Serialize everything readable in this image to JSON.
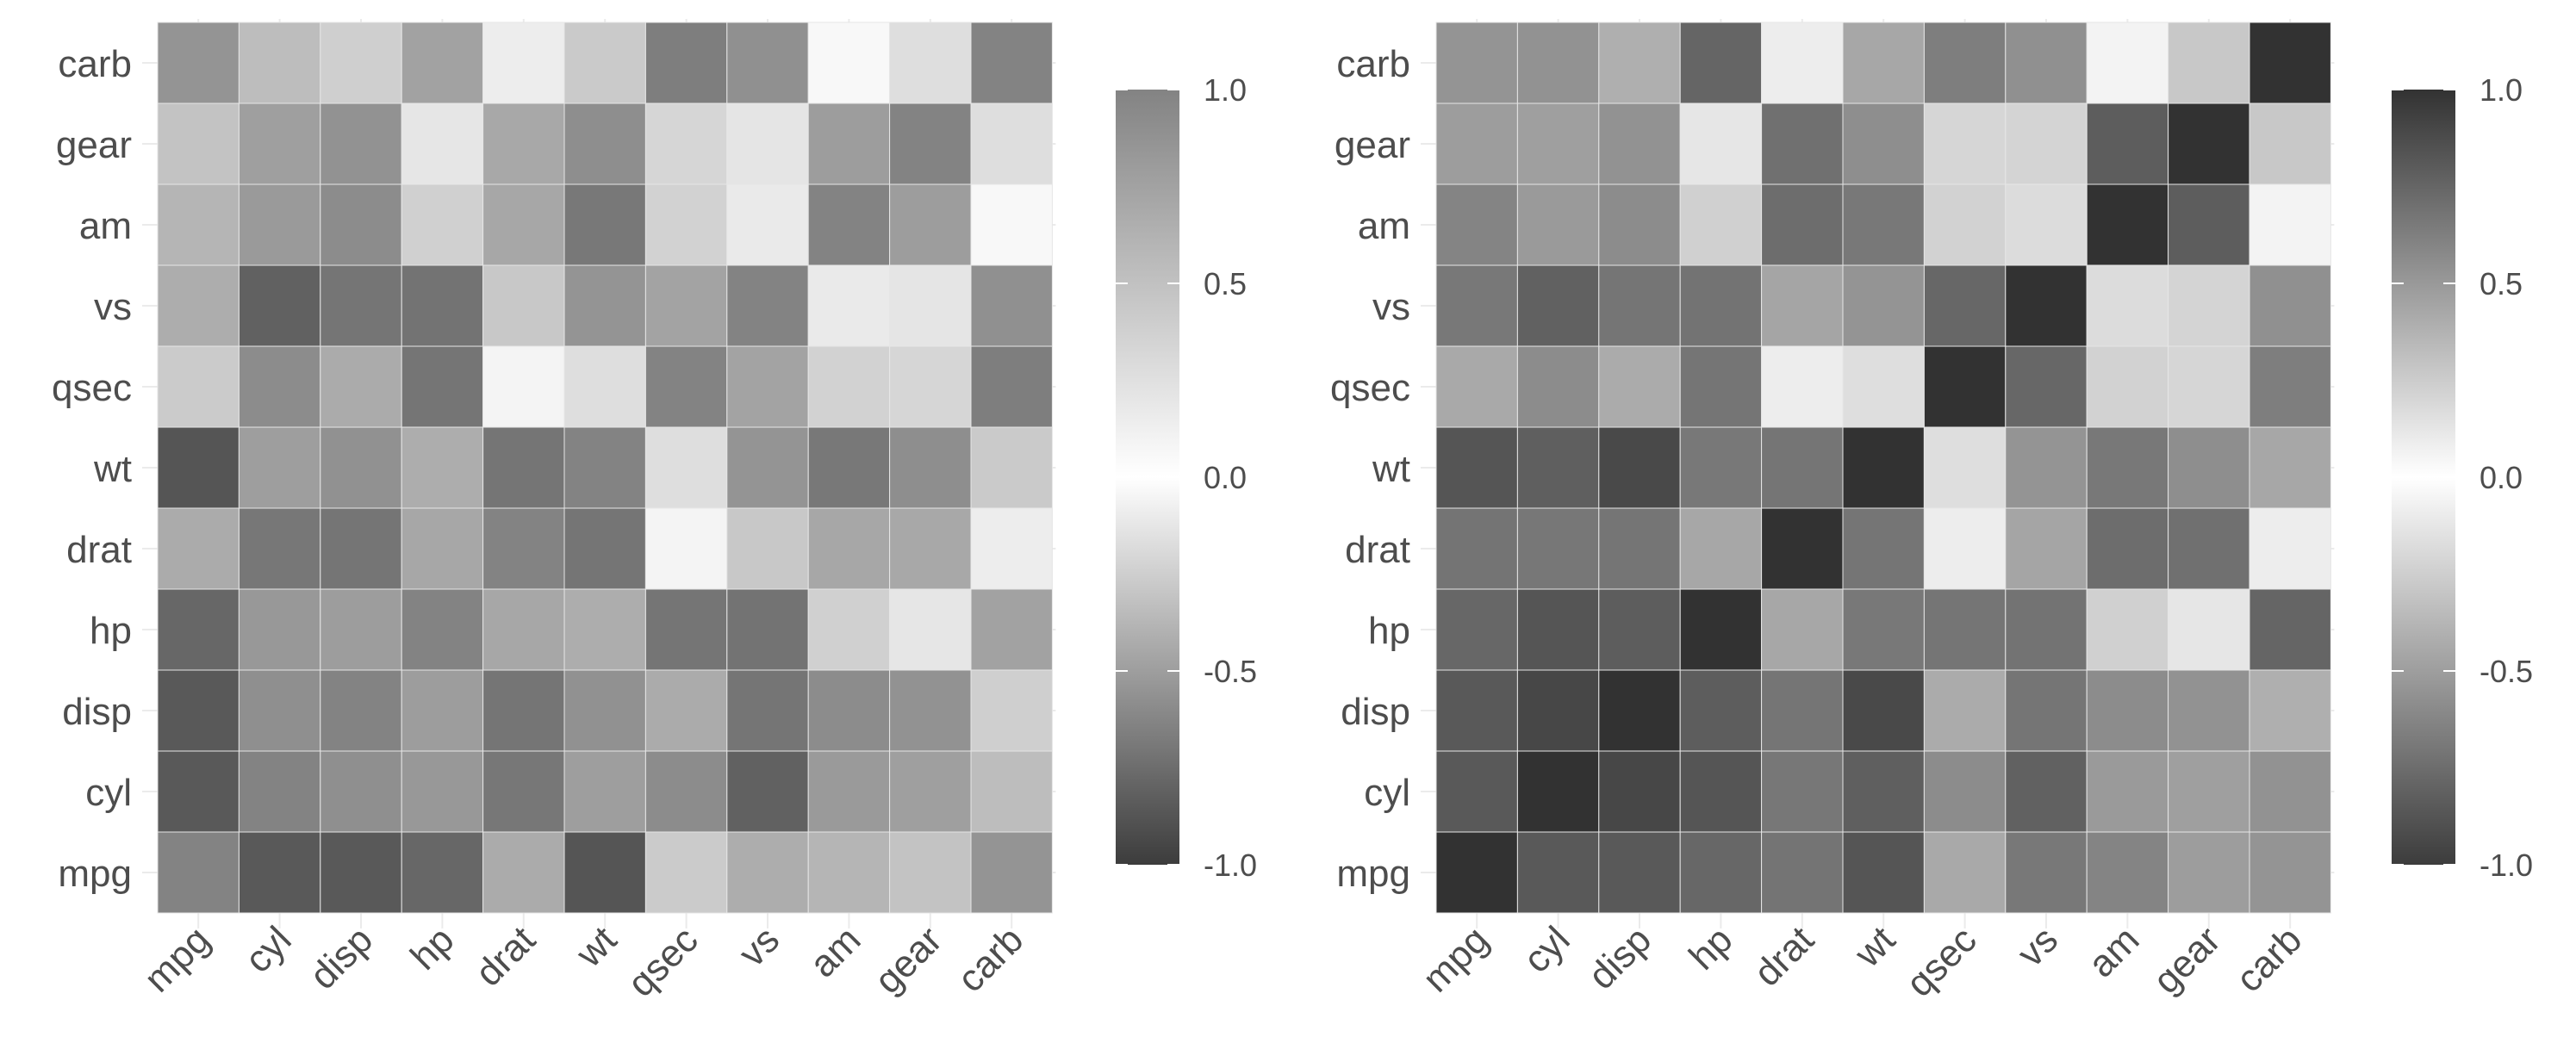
{
  "chart_data": [
    {
      "type": "heatmap",
      "title": "",
      "xlabel": "",
      "ylabel": "",
      "x_categories": [
        "mpg",
        "cyl",
        "disp",
        "hp",
        "drat",
        "wt",
        "qsec",
        "vs",
        "am",
        "gear",
        "carb"
      ],
      "y_categories": [
        "mpg",
        "cyl",
        "disp",
        "hp",
        "drat",
        "wt",
        "qsec",
        "vs",
        "am",
        "gear",
        "carb"
      ],
      "color_range": [
        -1.0,
        1.0
      ],
      "colorbar_ticks": [
        "1.0",
        "0.5",
        "0.0",
        "-0.5",
        "-1.0"
      ],
      "colorbar_tick_values": [
        1.0,
        0.5,
        0.0,
        -0.5,
        -1.0
      ],
      "colors": {
        "low": "#3c3c3c",
        "mid": "#ffffff",
        "high": "#838383"
      },
      "grid": true,
      "legend_position": "right",
      "values": [
        [
          1.0,
          -0.85,
          -0.85,
          -0.78,
          0.68,
          -0.87,
          0.42,
          0.66,
          0.6,
          0.48,
          -0.55
        ],
        [
          -0.85,
          1.0,
          0.9,
          0.83,
          -0.7,
          0.78,
          -0.59,
          -0.81,
          -0.52,
          -0.49,
          0.53
        ],
        [
          -0.85,
          0.9,
          1.0,
          0.79,
          -0.71,
          0.89,
          -0.43,
          -0.71,
          -0.59,
          -0.56,
          0.39
        ],
        [
          -0.78,
          0.83,
          0.79,
          1.0,
          -0.45,
          0.66,
          -0.71,
          -0.72,
          -0.24,
          -0.13,
          0.75
        ],
        [
          0.68,
          -0.7,
          -0.71,
          -0.45,
          1.0,
          -0.71,
          0.09,
          0.44,
          0.71,
          0.7,
          -0.09
        ],
        [
          -0.87,
          0.78,
          0.89,
          0.66,
          -0.71,
          1.0,
          -0.17,
          -0.55,
          -0.69,
          -0.58,
          0.43
        ],
        [
          0.42,
          -0.59,
          -0.43,
          -0.71,
          0.09,
          -0.17,
          1.0,
          0.74,
          -0.23,
          -0.21,
          -0.66
        ],
        [
          0.66,
          -0.81,
          -0.71,
          -0.72,
          0.44,
          -0.55,
          0.74,
          1.0,
          0.17,
          0.21,
          -0.57
        ],
        [
          0.6,
          -0.52,
          -0.59,
          -0.24,
          0.71,
          -0.69,
          -0.23,
          0.17,
          1.0,
          0.79,
          0.06
        ],
        [
          0.48,
          -0.49,
          -0.56,
          -0.13,
          0.7,
          -0.58,
          -0.21,
          0.21,
          0.79,
          1.0,
          0.27
        ],
        [
          -0.55,
          0.53,
          0.39,
          0.75,
          -0.09,
          0.43,
          -0.66,
          -0.57,
          0.06,
          0.27,
          1.0
        ]
      ]
    },
    {
      "type": "heatmap",
      "title": "",
      "xlabel": "",
      "ylabel": "",
      "x_categories": [
        "mpg",
        "cyl",
        "disp",
        "hp",
        "drat",
        "wt",
        "qsec",
        "vs",
        "am",
        "gear",
        "carb"
      ],
      "y_categories": [
        "mpg",
        "cyl",
        "disp",
        "hp",
        "drat",
        "wt",
        "qsec",
        "vs",
        "am",
        "gear",
        "carb"
      ],
      "color_range": [
        -1.0,
        1.0
      ],
      "colorbar_ticks": [
        "1.0",
        "0.5",
        "0.0",
        "-0.5",
        "-1.0"
      ],
      "colorbar_tick_values": [
        1.0,
        0.5,
        0.0,
        -0.5,
        -1.0
      ],
      "colors": {
        "low": "#3c3c3c",
        "mid": "#ffffff",
        "high": "#323232"
      },
      "grid": true,
      "legend_position": "right",
      "values": [
        [
          1.0,
          -0.85,
          -0.85,
          -0.78,
          0.68,
          -0.87,
          0.42,
          0.66,
          0.6,
          0.48,
          -0.55
        ],
        [
          -0.85,
          1.0,
          0.9,
          0.83,
          -0.7,
          0.78,
          -0.59,
          -0.81,
          -0.52,
          -0.49,
          0.53
        ],
        [
          -0.85,
          0.9,
          1.0,
          0.79,
          -0.71,
          0.89,
          -0.43,
          -0.71,
          -0.59,
          -0.56,
          0.39
        ],
        [
          -0.78,
          0.83,
          0.79,
          1.0,
          -0.45,
          0.66,
          -0.71,
          -0.72,
          -0.24,
          -0.13,
          0.75
        ],
        [
          0.68,
          -0.7,
          -0.71,
          -0.45,
          1.0,
          -0.71,
          0.09,
          0.44,
          0.71,
          0.7,
          -0.09
        ],
        [
          -0.87,
          0.78,
          0.89,
          0.66,
          -0.71,
          1.0,
          -0.17,
          -0.55,
          -0.69,
          -0.58,
          0.43
        ],
        [
          0.42,
          -0.59,
          -0.43,
          -0.71,
          0.09,
          -0.17,
          1.0,
          0.74,
          -0.23,
          -0.21,
          -0.66
        ],
        [
          0.66,
          -0.81,
          -0.71,
          -0.72,
          0.44,
          -0.55,
          0.74,
          1.0,
          0.17,
          0.21,
          -0.57
        ],
        [
          0.6,
          -0.52,
          -0.59,
          -0.24,
          0.71,
          -0.69,
          -0.23,
          0.17,
          1.0,
          0.79,
          0.06
        ],
        [
          0.48,
          -0.49,
          -0.56,
          -0.13,
          0.7,
          -0.58,
          -0.21,
          0.21,
          0.79,
          1.0,
          0.27
        ],
        [
          -0.55,
          0.53,
          0.39,
          0.75,
          -0.09,
          0.43,
          -0.66,
          -0.57,
          0.06,
          0.27,
          1.0
        ]
      ]
    }
  ]
}
